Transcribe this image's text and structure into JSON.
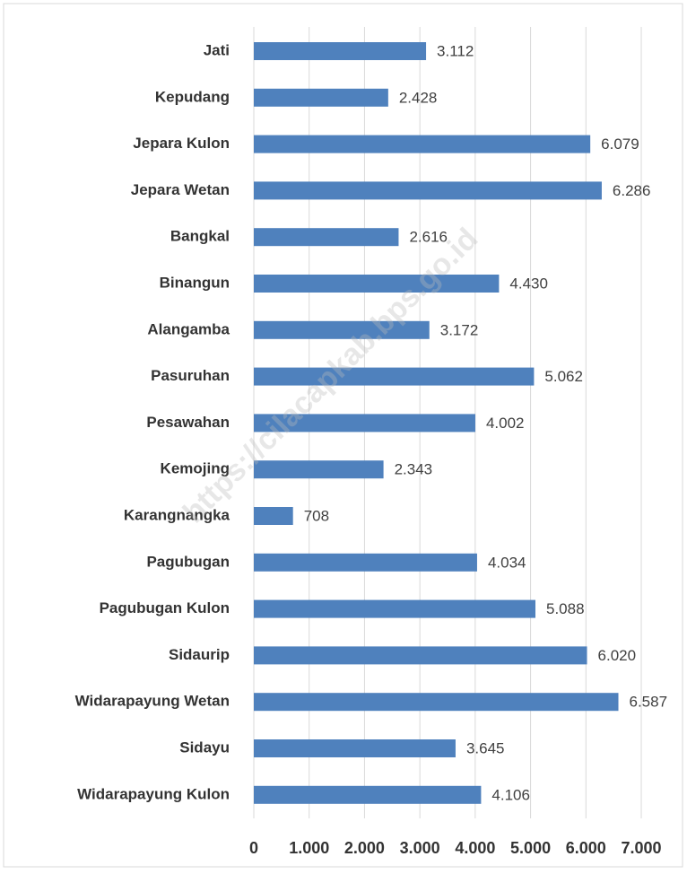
{
  "chart_data": {
    "type": "barh",
    "categories": [
      "Jati",
      "Kepudang",
      "Jepara Kulon",
      "Jepara Wetan",
      "Bangkal",
      "Binangun",
      "Alangamba",
      "Pasuruhan",
      "Pesawahan",
      "Kemojing",
      "Karangnangka",
      "Pagubugan",
      "Pagubugan Kulon",
      "Sidaurip",
      "Widarapayung Wetan",
      "Sidayu",
      "Widarapayung Kulon"
    ],
    "values": [
      3112,
      2428,
      6079,
      6286,
      2616,
      4430,
      3172,
      5062,
      4002,
      2343,
      708,
      4034,
      5088,
      6020,
      6587,
      3645,
      4106
    ],
    "value_labels": [
      "3.112",
      "2.428",
      "6.079",
      "6.286",
      "2.616",
      "4.430",
      "3.172",
      "5.062",
      "4.002",
      "2.343",
      "708",
      "4.034",
      "5.088",
      "6.020",
      "6.587",
      "3.645",
      "4.106"
    ],
    "color": "#4f81bd",
    "xlim": [
      0,
      7000
    ],
    "xticks": [
      0,
      {
        "value": 1000,
        "label": "1.000"
      },
      {
        "value": 2000,
        "label": "2.000"
      },
      {
        "value": 3000,
        "label": "3.000"
      },
      {
        "value": 4000,
        "label": "4.000"
      },
      {
        "value": 5000,
        "label": "5.000"
      },
      {
        "value": 6000,
        "label": "6.000"
      },
      {
        "value": 7000,
        "label": "7.000"
      }
    ],
    "grid": true,
    "watermark": "https://cilacapkab.bps.go.id"
  }
}
